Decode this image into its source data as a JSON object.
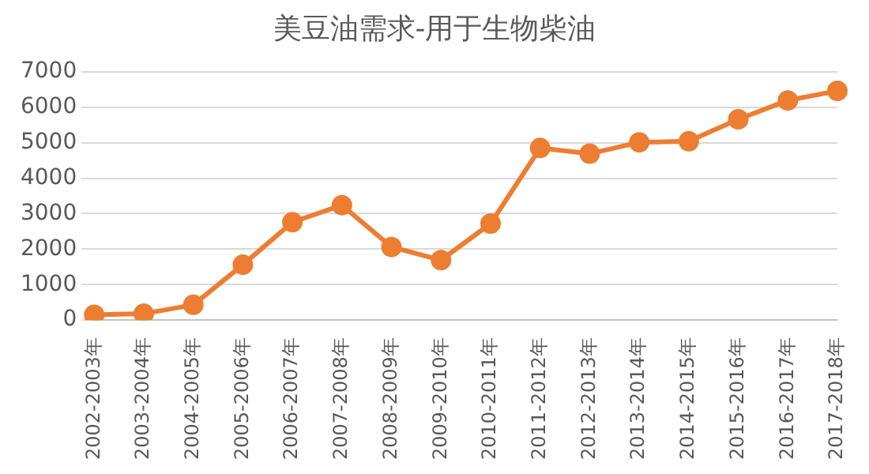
{
  "chart_data": {
    "type": "line",
    "title": "美豆油需求-用于生物柴油",
    "categories": [
      "2002-2003年",
      "2003-2004年",
      "2004-2005年",
      "2005-2006年",
      "2006-2007年",
      "2007-2008年",
      "2008-2009年",
      "2009-2010年",
      "2010-2011年",
      "2011-2012年",
      "2012-2013年",
      "2013-2014年",
      "2014-2015年",
      "2015-2016年",
      "2016-2017年",
      "2017-2018年"
    ],
    "series": [
      {
        "color": "#ed7d31",
        "values": [
          150,
          180,
          430,
          1560,
          2760,
          3240,
          2060,
          1690,
          2720,
          4850,
          4690,
          5010,
          5040,
          5660,
          6190,
          6460
        ]
      }
    ],
    "ylim": [
      0,
      7000
    ],
    "yticks": [
      0,
      1000,
      2000,
      3000,
      4000,
      5000,
      6000,
      7000
    ],
    "grid": "y",
    "legend": false,
    "marker": "circle",
    "line_style": "solid"
  }
}
